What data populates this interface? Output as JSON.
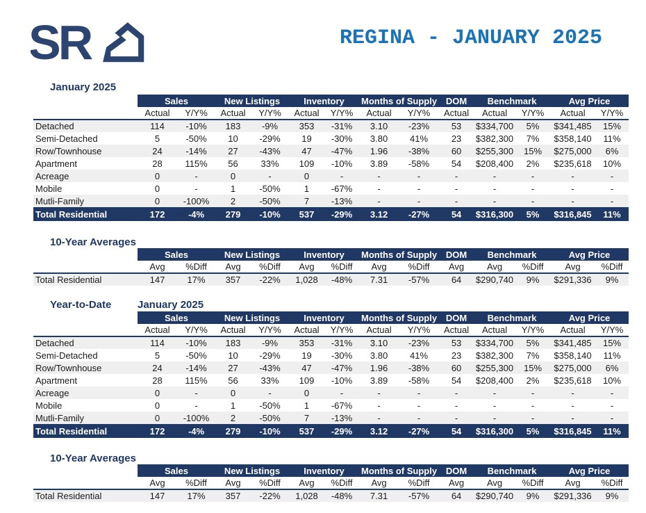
{
  "header": {
    "logo": {
      "text": "SR",
      "icon": "house-icon"
    },
    "title": "REGINA - JANUARY 2025"
  },
  "colors": {
    "table_navy": "#1F3864",
    "logo_navy": "#2B4470",
    "title_blue": "#1A72B8",
    "row_alt_gray": "#EFEFEF"
  },
  "column_groups": [
    {
      "label": "Sales",
      "cols": 2
    },
    {
      "label": "New Listings",
      "cols": 2
    },
    {
      "label": "Inventory",
      "cols": 2
    },
    {
      "label": "Months of Supply",
      "cols": 2
    },
    {
      "label": "DOM",
      "cols": 1
    },
    {
      "label": "Benchmark",
      "cols": 2
    },
    {
      "label": "Avg Price",
      "cols": 2
    }
  ],
  "monthly": {
    "section_label": "January 2025",
    "subheaders": [
      "Actual",
      "Y/Y%",
      "Actual",
      "Y/Y%",
      "Actual",
      "Y/Y%",
      "Actual",
      "Y/Y%",
      "Actual",
      "Actual",
      "Y/Y%",
      "Actual",
      "Y/Y%"
    ],
    "rows": [
      {
        "label": "Detached",
        "values": [
          "114",
          "-10%",
          "183",
          "-9%",
          "353",
          "-31%",
          "3.10",
          "-23%",
          "53",
          "$334,700",
          "5%",
          "$341,485",
          "15%"
        ]
      },
      {
        "label": "Semi-Detached",
        "values": [
          "5",
          "-50%",
          "10",
          "-29%",
          "19",
          "-30%",
          "3.80",
          "41%",
          "23",
          "$382,300",
          "7%",
          "$358,140",
          "11%"
        ]
      },
      {
        "label": "Row/Townhouse",
        "values": [
          "24",
          "-14%",
          "27",
          "-43%",
          "47",
          "-47%",
          "1.96",
          "-38%",
          "60",
          "$255,300",
          "15%",
          "$275,000",
          "6%"
        ]
      },
      {
        "label": "Apartment",
        "values": [
          "28",
          "115%",
          "56",
          "33%",
          "109",
          "-10%",
          "3.89",
          "-58%",
          "54",
          "$208,400",
          "2%",
          "$235,618",
          "10%"
        ]
      },
      {
        "label": "Acreage",
        "values": [
          "0",
          "-",
          "0",
          "-",
          "0",
          "-",
          "-",
          "-",
          "-",
          "-",
          "-",
          "-",
          "-"
        ]
      },
      {
        "label": "Mobile",
        "values": [
          "0",
          "-",
          "1",
          "-50%",
          "1",
          "-67%",
          "-",
          "-",
          "-",
          "-",
          "-",
          "-",
          "-"
        ]
      },
      {
        "label": "Mutli-Family",
        "values": [
          "0",
          "-100%",
          "2",
          "-50%",
          "7",
          "-13%",
          "-",
          "-",
          "-",
          "-",
          "-",
          "-",
          "-"
        ]
      },
      {
        "label": "Total Residential",
        "is_total": true,
        "values": [
          "172",
          "-4%",
          "279",
          "-10%",
          "537",
          "-29%",
          "3.12",
          "-27%",
          "54",
          "$316,300",
          "5%",
          "$316,845",
          "11%"
        ]
      }
    ]
  },
  "ten_year": {
    "section_label": "10-Year Averages",
    "subheaders": [
      "Avg",
      "%Diff",
      "Avg",
      "%Diff",
      "Avg",
      "%Diff",
      "Avg",
      "%Diff",
      "Avg",
      "Avg",
      "%Diff",
      "Avg",
      "%Diff"
    ],
    "rows": [
      {
        "label": "Total Residential",
        "values": [
          "147",
          "17%",
          "357",
          "-22%",
          "1,028",
          "-48%",
          "7.31",
          "-57%",
          "64",
          "$290,740",
          "9%",
          "$291,336",
          "9%"
        ]
      }
    ]
  },
  "ytd": {
    "section_label": "Year-to-Date",
    "period_label": "January 2025",
    "subheaders": [
      "Actual",
      "Y/Y%",
      "Actual",
      "Y/Y%",
      "Actual",
      "Y/Y%",
      "Actual",
      "Y/Y%",
      "Actual",
      "Actual",
      "Y/Y%",
      "Actual",
      "Y/Y%"
    ],
    "rows": [
      {
        "label": "Detached",
        "values": [
          "114",
          "-10%",
          "183",
          "-9%",
          "353",
          "-31%",
          "3.10",
          "-23%",
          "53",
          "$334,700",
          "5%",
          "$341,485",
          "15%"
        ]
      },
      {
        "label": "Semi-Detached",
        "values": [
          "5",
          "-50%",
          "10",
          "-29%",
          "19",
          "-30%",
          "3.80",
          "41%",
          "23",
          "$382,300",
          "7%",
          "$358,140",
          "11%"
        ]
      },
      {
        "label": "Row/Townhouse",
        "values": [
          "24",
          "-14%",
          "27",
          "-43%",
          "47",
          "-47%",
          "1.96",
          "-38%",
          "60",
          "$255,300",
          "15%",
          "$275,000",
          "6%"
        ]
      },
      {
        "label": "Apartment",
        "values": [
          "28",
          "115%",
          "56",
          "33%",
          "109",
          "-10%",
          "3.89",
          "-58%",
          "54",
          "$208,400",
          "2%",
          "$235,618",
          "10%"
        ]
      },
      {
        "label": "Acreage",
        "values": [
          "0",
          "-",
          "0",
          "-",
          "0",
          "-",
          "-",
          "-",
          "-",
          "-",
          "-",
          "-",
          "-"
        ]
      },
      {
        "label": "Mobile",
        "values": [
          "0",
          "-",
          "1",
          "-50%",
          "1",
          "-67%",
          "-",
          "-",
          "-",
          "-",
          "-",
          "-",
          "-"
        ]
      },
      {
        "label": "Mutli-Family",
        "values": [
          "0",
          "-100%",
          "2",
          "-50%",
          "7",
          "-13%",
          "-",
          "-",
          "-",
          "-",
          "-",
          "-",
          "-"
        ]
      },
      {
        "label": "Total Residential",
        "is_total": true,
        "values": [
          "172",
          "-4%",
          "279",
          "-10%",
          "537",
          "-29%",
          "3.12",
          "-27%",
          "54",
          "$316,300",
          "5%",
          "$316,845",
          "11%"
        ]
      }
    ]
  },
  "ten_year_2": {
    "section_label": "10-Year Averages",
    "subheaders": [
      "Avg",
      "%Diff",
      "Avg",
      "%Diff",
      "Avg",
      "%Diff",
      "Avg",
      "%Diff",
      "Avg",
      "Avg",
      "%Diff",
      "Avg",
      "%Diff"
    ],
    "rows": [
      {
        "label": "Total Residential",
        "values": [
          "147",
          "17%",
          "357",
          "-22%",
          "1,028",
          "-48%",
          "7.31",
          "-57%",
          "64",
          "$290,740",
          "9%",
          "$291,336",
          "9%"
        ]
      }
    ]
  }
}
